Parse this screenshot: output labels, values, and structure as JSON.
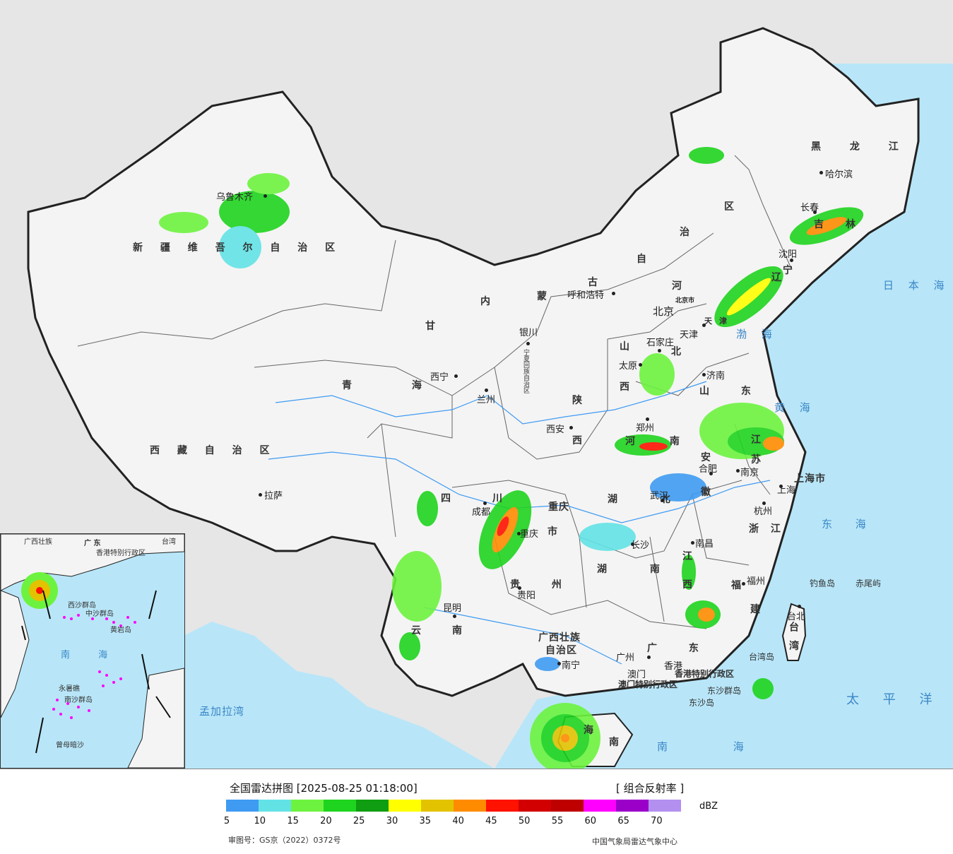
{
  "legend": {
    "title": "全国雷达拼图 [2025-08-25 01:18:00]",
    "product": "[ 组合反射率 ]",
    "unit": "dBZ",
    "approval": "审图号：GS京（2022）0372号",
    "source": "中国气象局雷达气象中心",
    "colors": [
      "#3f9bf2",
      "#63e2e6",
      "#6df33f",
      "#1fd41e",
      "#0f9d12",
      "#ffff00",
      "#e3c300",
      "#ff8c00",
      "#ff1200",
      "#d20000",
      "#be0000",
      "#ff00ff",
      "#9b00c9",
      "#b38ff0"
    ],
    "ticks": [
      "5",
      "10",
      "15",
      "20",
      "25",
      "30",
      "35",
      "40",
      "45",
      "50",
      "55",
      "60",
      "65",
      "70"
    ]
  },
  "map": {
    "provinces": {
      "xinjiang": "新 疆 维 吾 尔 自 治 区",
      "xizang": "西 藏 自 治 区",
      "qinghai": "青 海",
      "gansu": "甘",
      "sichuan_a": "四",
      "sichuan_b": "川",
      "yunnan_a": "云",
      "yunnan_b": "南",
      "guizhou": "贵 州",
      "guangxi_a": "广西壮族",
      "guangxi_b": "自治区",
      "guangdong": "广 东",
      "hunan": "湖 南",
      "hubei": "湖 北",
      "chongqing_a": "重庆",
      "chongqing_b": "市",
      "shaanxi_a": "陕",
      "shaanxi_b": "西",
      "shanxi_a": "山",
      "shanxi_b": "西",
      "henan": "河 南",
      "shandong": "山 东",
      "jiangsu_a": "江",
      "jiangsu_b": "苏",
      "anhui_a": "安",
      "anhui_b": "徽",
      "zhejiang": "浙 江",
      "jiangxi_a": "江",
      "jiangxi_b": "西",
      "fujian_a": "福",
      "fujian_b": "建",
      "taiwan": "台 湾",
      "hebei_a": "河",
      "hebei_b": "北",
      "neimenggu_a": "内",
      "neimenggu_b": "蒙",
      "neimenggu_c": "古",
      "neimenggu_d": "自",
      "neimenggu_e": "治",
      "neimenggu_f": "区",
      "liaoning_a": "辽",
      "liaoning_b": "宁",
      "jilin_a": "吉",
      "jilin_b": "林",
      "heilongjiang": "黑 龙 江",
      "ningxia": "宁夏回族自治区",
      "shanghai": "上海市",
      "beijing": "北京市",
      "tianjin": "天津",
      "hainan_a": "海",
      "hainan_b": "南",
      "hongkong": "香港特别行政区",
      "macau": "澳门特别行政区",
      "gan_a": "甘"
    },
    "cities": {
      "urumqi": "乌鲁木齐",
      "lhasa": "拉萨",
      "xining": "西宁",
      "lanzhou": "兰州",
      "yinchuan": "银川",
      "hohhot": "呼和浩特",
      "beijing": "北京",
      "tianjin": "天津",
      "shijiazhuang": "石家庄",
      "taiyuan": "太原",
      "jinan": "济南",
      "zhengzhou": "郑州",
      "xian": "西安",
      "chengdu": "成都",
      "chongqing": "重庆",
      "guiyang": "贵阳",
      "kunming": "昆明",
      "nanning": "南宁",
      "guangzhou": "广州",
      "hongkong": "香港",
      "macau": "澳门",
      "changsha": "长沙",
      "wuhan": "武汉",
      "hefei": "合肥",
      "nanjing": "南京",
      "shanghai": "上海",
      "hangzhou": "杭州",
      "nanchang": "南昌",
      "fuzhou": "福州",
      "taipei": "台北",
      "shenyang": "沈阳",
      "changchun": "长春",
      "harbin": "哈尔滨"
    },
    "seas": {
      "japan": "日 本 海",
      "bohai": "渤 海",
      "yellow": "黄 海",
      "east": "东 海",
      "pacific": "太 平 洋",
      "south": "南 海",
      "bengal": "孟加拉湾"
    },
    "islands": {
      "diaoyu": "钓鱼岛",
      "chiwei": "赤尾屿",
      "dongsha": "东沙群岛",
      "dongsha_island": "东沙岛",
      "taiwan_strait_lab": "台湾岛"
    },
    "inset": {
      "south_sea": "南 海",
      "zhongsha": "中沙群岛",
      "huangyan": "黄岩岛",
      "nansha": "南沙群岛",
      "zengmu": "曾母暗沙",
      "yongshu": "永暑礁",
      "guangdong": "广 东",
      "taiwan": "台湾",
      "guangxi": "广西壮族",
      "xisha": "西沙群岛",
      "hongkong": "香港特别行政区"
    }
  }
}
